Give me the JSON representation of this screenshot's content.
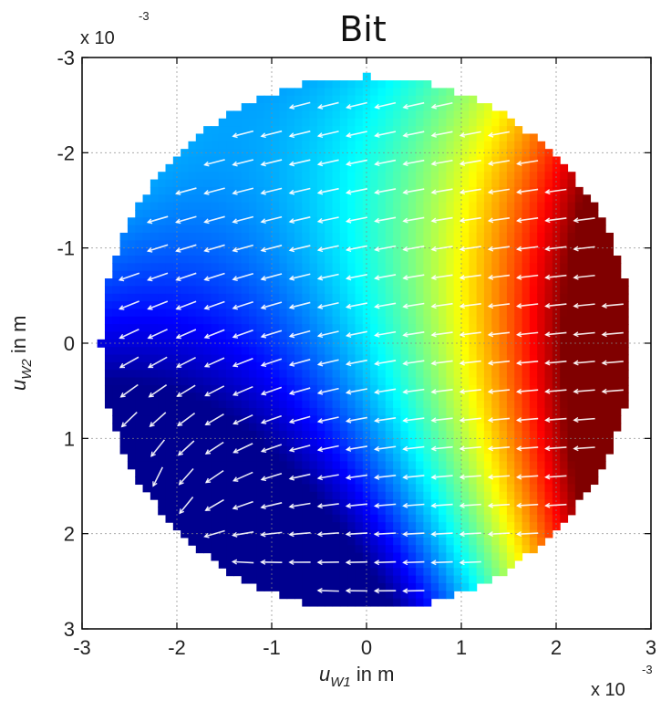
{
  "chart_data": {
    "type": "heatmap",
    "title": "Bit",
    "xlabel": {
      "var": "u",
      "sub": "W1",
      "unit": " in m"
    },
    "ylabel": {
      "var": "u",
      "sub": "W2",
      "unit": " in m"
    },
    "xlim": [
      -3,
      3
    ],
    "ylim": [
      -3,
      3
    ],
    "y_reversed": true,
    "scale_factor": {
      "base": "x 10",
      "exponent": "-3"
    },
    "xticks": [
      -3,
      -2,
      -1,
      0,
      1,
      2,
      3
    ],
    "yticks": [
      -3,
      -2,
      -1,
      0,
      1,
      2,
      3
    ],
    "xtick_labels": [
      "-3",
      "-2",
      "-1",
      "0",
      "1",
      "2",
      "3"
    ],
    "ytick_labels": [
      "-3",
      "-2",
      "-1",
      "0",
      "1",
      "2",
      "3"
    ],
    "grid": true,
    "domain": {
      "shape": "circle",
      "center": [
        0,
        0
      ],
      "radius": 2.8
    },
    "colormap": "jet",
    "colormap_stops": [
      "#00008f",
      "#0000ff",
      "#0080ff",
      "#00ffff",
      "#80ff80",
      "#ffff00",
      "#ff8000",
      "#ff0000",
      "#800000"
    ],
    "vector_field": {
      "color": "#ffffff",
      "sink": [
        -2.1,
        2.2
      ]
    }
  }
}
